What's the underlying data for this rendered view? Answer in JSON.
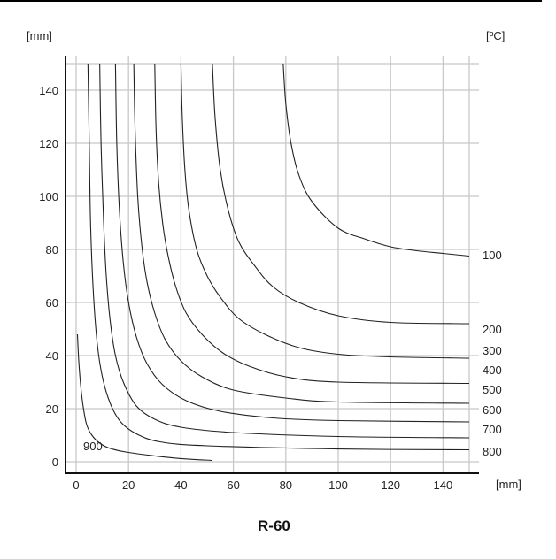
{
  "chart_data": {
    "type": "line",
    "title": "R-60",
    "xlabel": "[mm]",
    "ylabel": "[mm]",
    "series_unit_label": "[ºC]",
    "xlim": [
      0,
      150
    ],
    "ylim": [
      0,
      150
    ],
    "grid": true,
    "x_ticks": [
      0,
      20,
      40,
      60,
      80,
      100,
      120,
      140
    ],
    "y_ticks": [
      0,
      20,
      40,
      60,
      80,
      100,
      120,
      140
    ],
    "legend_position": "right (inline labels at curve ends)",
    "series": [
      {
        "name": "100",
        "points": [
          [
            79,
            150
          ],
          [
            80,
            135
          ],
          [
            82,
            120
          ],
          [
            85,
            108
          ],
          [
            90,
            98
          ],
          [
            100,
            88
          ],
          [
            110,
            84
          ],
          [
            120,
            81
          ],
          [
            130,
            79.5
          ],
          [
            140,
            78.5
          ],
          [
            150,
            77.5
          ]
        ]
      },
      {
        "name": "200",
        "points": [
          [
            52,
            150
          ],
          [
            53,
            130
          ],
          [
            55,
            110
          ],
          [
            58,
            95
          ],
          [
            62,
            83
          ],
          [
            68,
            74
          ],
          [
            75,
            66
          ],
          [
            85,
            60
          ],
          [
            100,
            55
          ],
          [
            120,
            52.5
          ],
          [
            150,
            52
          ]
        ]
      },
      {
        "name": "300",
        "points": [
          [
            40,
            150
          ],
          [
            40.5,
            130
          ],
          [
            41.5,
            110
          ],
          [
            43,
            95
          ],
          [
            46,
            80
          ],
          [
            50,
            70
          ],
          [
            55,
            62
          ],
          [
            62,
            54
          ],
          [
            72,
            48
          ],
          [
            85,
            43
          ],
          [
            100,
            40.5
          ],
          [
            120,
            39.5
          ],
          [
            150,
            39
          ]
        ]
      },
      {
        "name": "400",
        "points": [
          [
            30,
            150
          ],
          [
            30.5,
            125
          ],
          [
            31.5,
            105
          ],
          [
            33,
            90
          ],
          [
            35,
            78
          ],
          [
            38,
            66
          ],
          [
            42,
            56
          ],
          [
            48,
            48
          ],
          [
            56,
            41
          ],
          [
            66,
            36
          ],
          [
            80,
            32
          ],
          [
            100,
            30
          ],
          [
            150,
            29.5
          ]
        ]
      },
      {
        "name": "500",
        "points": [
          [
            22,
            150
          ],
          [
            22.5,
            125
          ],
          [
            23.5,
            100
          ],
          [
            25,
            82
          ],
          [
            27,
            68
          ],
          [
            30,
            56
          ],
          [
            34,
            46
          ],
          [
            40,
            38
          ],
          [
            48,
            32
          ],
          [
            60,
            27
          ],
          [
            80,
            24
          ],
          [
            100,
            22.5
          ],
          [
            150,
            22
          ]
        ]
      },
      {
        "name": "600",
        "points": [
          [
            15,
            150
          ],
          [
            15.5,
            120
          ],
          [
            16.5,
            95
          ],
          [
            18,
            75
          ],
          [
            20,
            60
          ],
          [
            23,
            47
          ],
          [
            27,
            37
          ],
          [
            33,
            29
          ],
          [
            42,
            23
          ],
          [
            55,
            19
          ],
          [
            75,
            16.5
          ],
          [
            100,
            15.5
          ],
          [
            150,
            15
          ]
        ]
      },
      {
        "name": "700",
        "points": [
          [
            9,
            150
          ],
          [
            9.5,
            120
          ],
          [
            10.5,
            90
          ],
          [
            11.5,
            70
          ],
          [
            13,
            53
          ],
          [
            15,
            40
          ],
          [
            18,
            30
          ],
          [
            23,
            21
          ],
          [
            30,
            16
          ],
          [
            40,
            13
          ],
          [
            60,
            11
          ],
          [
            100,
            9.5
          ],
          [
            150,
            9
          ]
        ]
      },
      {
        "name": "800",
        "points": [
          [
            4.5,
            150
          ],
          [
            5,
            120
          ],
          [
            5.5,
            90
          ],
          [
            6.5,
            65
          ],
          [
            8,
            45
          ],
          [
            10,
            32
          ],
          [
            13,
            22
          ],
          [
            17,
            15
          ],
          [
            23,
            10.5
          ],
          [
            32,
            7.5
          ],
          [
            50,
            6
          ],
          [
            100,
            4.8
          ],
          [
            150,
            4.5
          ]
        ]
      },
      {
        "name": "900",
        "points": [
          [
            0.5,
            48
          ],
          [
            1,
            38
          ],
          [
            1.8,
            28
          ],
          [
            2.8,
            20
          ],
          [
            4,
            14
          ],
          [
            6,
            10
          ],
          [
            9,
            7
          ],
          [
            13,
            5
          ],
          [
            20,
            3.5
          ],
          [
            30,
            2.2
          ],
          [
            40,
            1.2
          ],
          [
            52,
            0.5
          ]
        ]
      }
    ]
  },
  "axes": {
    "y_unit": "[mm]",
    "x_unit": "[mm]",
    "temp_unit": "[ºC]",
    "x_tick_labels": [
      "0",
      "20",
      "40",
      "60",
      "80",
      "100",
      "120",
      "140"
    ],
    "y_tick_labels": [
      "0",
      "20",
      "40",
      "60",
      "80",
      "100",
      "120",
      "140"
    ]
  },
  "curve_labels": [
    "100",
    "200",
    "300",
    "400",
    "500",
    "600",
    "700",
    "800",
    "900"
  ],
  "title": "R-60"
}
